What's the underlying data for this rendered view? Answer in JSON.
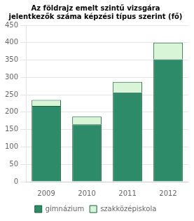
{
  "chart_data": {
    "type": "bar",
    "title": "Az földrajz emelt szintű vizsgára\njelentkezők száma képzési típus szerint (fő)",
    "categories": [
      "2009",
      "2010",
      "2011",
      "2012"
    ],
    "series": [
      {
        "name": "gimnázium",
        "color": "#2e8b6a",
        "values": [
          218,
          165,
          257,
          352
        ]
      },
      {
        "name": "szakközépiskola",
        "color": "#d8f5d8",
        "values": [
          17,
          22,
          30,
          48
        ]
      }
    ],
    "stacked": true,
    "ylim": [
      0,
      450
    ],
    "yticks": [
      0,
      50,
      100,
      150,
      200,
      250,
      300,
      350,
      400,
      450
    ],
    "grid": "y",
    "legend": "bottom"
  }
}
